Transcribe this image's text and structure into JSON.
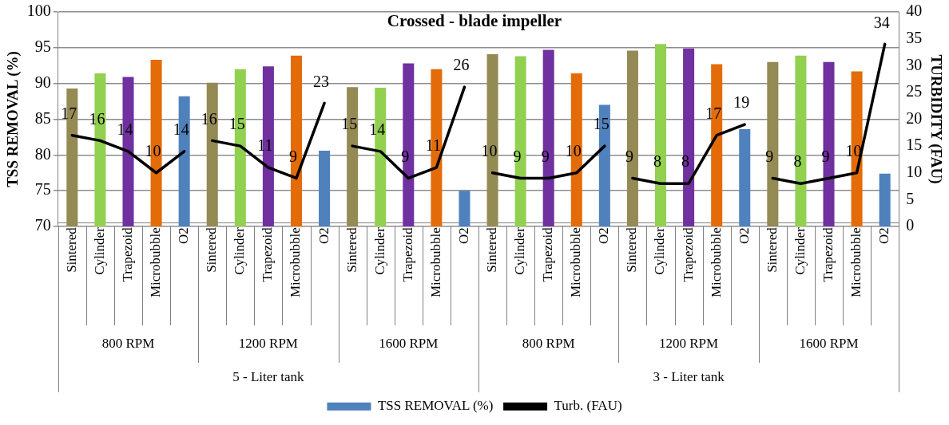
{
  "chart_data": {
    "type": "bar",
    "title": "Crossed - blade impeller",
    "ylabel": "TSS REMOVAL (%)",
    "y2label": "TURBIDITY (FAU)",
    "categories": [
      "Sintered",
      "Cylinder",
      "Trapezoid",
      "Microbubble",
      "O2",
      "Sintered",
      "Cylinder",
      "Trapezoid",
      "Microbubble",
      "O2",
      "Sintered",
      "Cylinder",
      "Trapezoid",
      "Microbubble",
      "O2",
      "Sintered",
      "Cylinder",
      "Trapezoid",
      "Microbubble",
      "O2",
      "Sintered",
      "Cylinder",
      "Trapezoid",
      "Microbubble",
      "O2",
      "Sintered",
      "Cylinder",
      "Trapezoid",
      "Microbubble",
      "O2"
    ],
    "series": [
      {
        "name": "TSS REMOVAL (%)",
        "color": "#4f81bd",
        "colors": [
          "#948a54",
          "#92d050",
          "#7030a0",
          "#e36c09",
          "#4f81bd",
          "#948a54",
          "#92d050",
          "#7030a0",
          "#e36c09",
          "#4f81bd",
          "#948a54",
          "#92d050",
          "#7030a0",
          "#e36c09",
          "#4f81bd",
          "#948a54",
          "#92d050",
          "#7030a0",
          "#e36c09",
          "#4f81bd",
          "#948a54",
          "#92d050",
          "#7030a0",
          "#e36c09",
          "#4f81bd",
          "#948a54",
          "#92d050",
          "#7030a0",
          "#e36c09",
          "#4f81bd"
        ],
        "values": [
          89.3,
          91.4,
          90.9,
          93.3,
          88.2,
          90.1,
          92.0,
          92.4,
          93.9,
          80.6,
          89.5,
          89.4,
          92.8,
          92.0,
          75.0,
          94.1,
          93.8,
          94.7,
          91.4,
          87.0,
          94.6,
          95.5,
          94.9,
          92.7,
          83.6,
          93.0,
          93.9,
          93.0,
          91.7,
          77.4
        ]
      },
      {
        "name": "Turb. (FAU)",
        "type": "line",
        "axis": "y2",
        "color": "#000000",
        "marker": "none",
        "values": [
          17,
          16,
          14,
          10,
          14,
          16,
          15,
          11,
          9,
          23,
          15,
          14,
          9,
          11,
          26,
          10,
          9,
          9,
          10,
          15,
          9,
          8,
          8,
          17,
          19,
          9,
          8,
          9,
          10,
          34
        ],
        "value_labels": [
          "17",
          "16",
          "14",
          "10",
          "14",
          "16",
          "15",
          "11",
          "9",
          "23",
          "15",
          "14",
          "9",
          "11",
          "26",
          "10",
          "9",
          "9",
          "10",
          "15",
          "9",
          "8",
          "8",
          "17",
          "19",
          "9",
          "8",
          "9",
          "10",
          "34"
        ]
      }
    ],
    "ylim": [
      70,
      100
    ],
    "yticks": [
      70,
      75,
      80,
      85,
      90,
      95,
      100
    ],
    "y2lim": [
      0,
      40
    ],
    "y2ticks": [
      0,
      5,
      10,
      15,
      20,
      25,
      30,
      35,
      40
    ],
    "grid": "y",
    "legend": "bottom",
    "annotations": [
      "800 RPM",
      "1200 RPM",
      "1600 RPM",
      "800 RPM",
      "1200 RPM",
      "1600 RPM",
      "5 - Liter tank",
      "3 - Liter tank"
    ]
  }
}
